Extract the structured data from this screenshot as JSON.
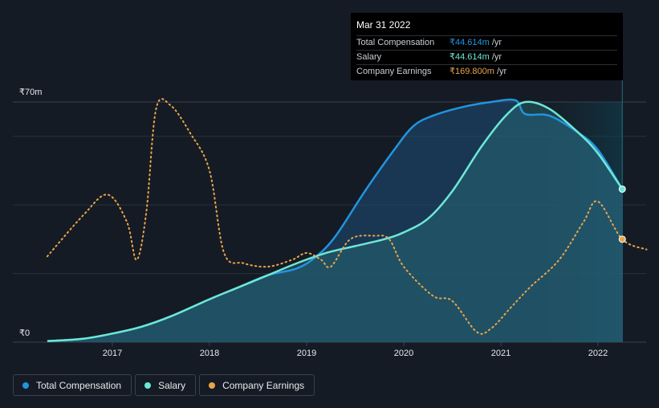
{
  "chart_data": {
    "type": "area",
    "title": "",
    "xlabel": "",
    "ylabel": "",
    "y_axis_labels": [
      "₹70m",
      "₹0"
    ],
    "ylim": [
      0,
      70
    ],
    "xlim": [
      2016.25,
      2022.5
    ],
    "x_tick_labels": [
      "2017",
      "2018",
      "2019",
      "2020",
      "2021",
      "2022"
    ],
    "x_ticks": [
      2017,
      2018,
      2019,
      2020,
      2021,
      2022
    ],
    "forecast_shade_start": 2021.25,
    "series": [
      {
        "name": "Total Compensation",
        "color": "#2394df",
        "points": [
          [
            2016.33,
            0.3
          ],
          [
            2016.7,
            1
          ],
          [
            2017,
            2.5
          ],
          [
            2017.3,
            4.5
          ],
          [
            2017.6,
            7.5
          ],
          [
            2018,
            12.5
          ],
          [
            2018.3,
            16
          ],
          [
            2018.6,
            19.5
          ],
          [
            2018.9,
            21.5
          ],
          [
            2019.1,
            25
          ],
          [
            2019.3,
            31
          ],
          [
            2019.6,
            44
          ],
          [
            2019.9,
            56
          ],
          [
            2020.1,
            63
          ],
          [
            2020.3,
            66
          ],
          [
            2020.6,
            68.5
          ],
          [
            2020.9,
            70
          ],
          [
            2021.15,
            70.5
          ],
          [
            2021.25,
            66.5
          ],
          [
            2021.5,
            66
          ],
          [
            2021.8,
            61
          ],
          [
            2022.0,
            56
          ],
          [
            2022.25,
            44.6
          ]
        ]
      },
      {
        "name": "Salary",
        "color": "#6ee7d6",
        "points": [
          [
            2016.33,
            0.3
          ],
          [
            2016.7,
            1
          ],
          [
            2017,
            2.5
          ],
          [
            2017.3,
            4.5
          ],
          [
            2017.6,
            7.5
          ],
          [
            2018,
            12.5
          ],
          [
            2018.3,
            16
          ],
          [
            2018.6,
            19.5
          ],
          [
            2018.9,
            23
          ],
          [
            2019.2,
            26
          ],
          [
            2019.5,
            28
          ],
          [
            2019.8,
            30
          ],
          [
            2020,
            32
          ],
          [
            2020.25,
            36
          ],
          [
            2020.5,
            44
          ],
          [
            2020.8,
            57
          ],
          [
            2021.05,
            66
          ],
          [
            2021.25,
            70
          ],
          [
            2021.5,
            68
          ],
          [
            2021.8,
            61
          ],
          [
            2022.0,
            55
          ],
          [
            2022.25,
            44.6
          ]
        ]
      },
      {
        "name": "Company Earnings",
        "color": "#e8a54b",
        "value_label": "₹169.800m",
        "scale_note": "plotted on secondary scale",
        "points": [
          [
            2016.33,
            25
          ],
          [
            2016.7,
            37
          ],
          [
            2016.95,
            43
          ],
          [
            2017.15,
            35
          ],
          [
            2017.25,
            24
          ],
          [
            2017.35,
            38
          ],
          [
            2017.45,
            68
          ],
          [
            2017.6,
            69
          ],
          [
            2017.8,
            61
          ],
          [
            2018.0,
            50
          ],
          [
            2018.15,
            26
          ],
          [
            2018.35,
            23
          ],
          [
            2018.6,
            22
          ],
          [
            2018.85,
            24
          ],
          [
            2019.0,
            26
          ],
          [
            2019.15,
            24
          ],
          [
            2019.25,
            22
          ],
          [
            2019.45,
            30
          ],
          [
            2019.7,
            31
          ],
          [
            2019.85,
            30
          ],
          [
            2020.0,
            22
          ],
          [
            2020.3,
            13.5
          ],
          [
            2020.5,
            12
          ],
          [
            2020.75,
            3
          ],
          [
            2020.9,
            4
          ],
          [
            2021.1,
            10
          ],
          [
            2021.3,
            16
          ],
          [
            2021.6,
            24
          ],
          [
            2021.85,
            35
          ],
          [
            2022.0,
            41
          ],
          [
            2022.25,
            30
          ],
          [
            2022.5,
            27
          ]
        ]
      }
    ],
    "tooltip": {
      "date": "Mar 31 2022",
      "rows": [
        {
          "name": "Total Compensation",
          "value": "₹44.614m",
          "unit": "/yr",
          "color": "#2394df"
        },
        {
          "name": "Salary",
          "value": "₹44.614m",
          "unit": "/yr",
          "color": "#6ee7d6"
        },
        {
          "name": "Company Earnings",
          "value": "₹169.800m",
          "unit": "/yr",
          "color": "#e8a54b"
        }
      ]
    },
    "legend": [
      {
        "name": "Total Compensation",
        "color": "#2394df"
      },
      {
        "name": "Salary",
        "color": "#6ee7d6"
      },
      {
        "name": "Company Earnings",
        "color": "#e8a54b"
      }
    ]
  }
}
